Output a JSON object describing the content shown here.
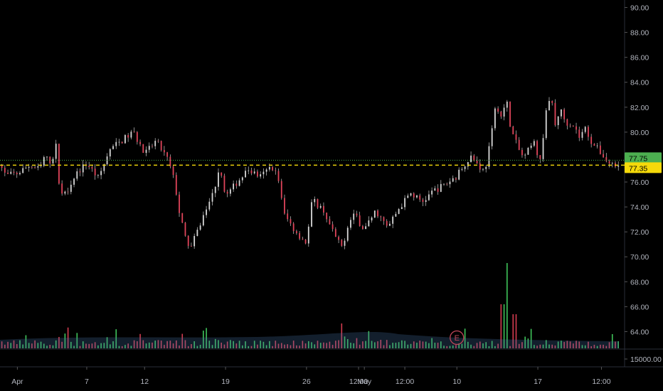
{
  "chart_data": {
    "type": "candlestick",
    "price_axis": {
      "ticks": [
        "90.00",
        "88.00",
        "86.00",
        "84.00",
        "82.00",
        "80.00",
        "78.00",
        "76.00",
        "74.00",
        "72.00",
        "70.00",
        "68.00",
        "66.00",
        "64.00"
      ],
      "ylim": [
        62.6,
        90.6
      ]
    },
    "volume_axis": {
      "label": "15000.00"
    },
    "time_axis": {
      "ticks": [
        "Apr",
        "7",
        "12",
        "19",
        "26",
        "12:00",
        "May",
        "12:00",
        "10",
        "17",
        "12:00"
      ],
      "tick_days": [
        0,
        6,
        11,
        18,
        25,
        29.5,
        30,
        33.5,
        38,
        45,
        50.5
      ],
      "xlim": [
        -1.5,
        52.5
      ]
    },
    "price_tags": [
      {
        "label": "77.75",
        "value": 77.75,
        "color": "#4caf50"
      },
      {
        "label": "77.35",
        "value": 77.35,
        "color": "#f5d90a"
      }
    ],
    "reference_line": {
      "value": 77.35,
      "color": "#f5d90a",
      "style": "dashed"
    },
    "earnings_marker": {
      "label": "E",
      "day": 38
    },
    "path": [
      [
        -1.6,
        77.6
      ],
      [
        -1.0,
        76.5
      ],
      [
        0,
        76.7
      ],
      [
        1.0,
        77.3
      ],
      [
        2.0,
        77.0
      ],
      [
        2.2,
        78.0
      ],
      [
        3.0,
        77.6
      ],
      [
        3.3,
        79.3
      ],
      [
        3.6,
        76.0
      ],
      [
        4.0,
        74.8
      ],
      [
        5.0,
        76.6
      ],
      [
        6.0,
        77.5
      ],
      [
        7.0,
        76.3
      ],
      [
        8.0,
        78.6
      ],
      [
        9.0,
        79.3
      ],
      [
        10.0,
        80.0
      ],
      [
        10.5,
        79.2
      ],
      [
        11.0,
        78.2
      ],
      [
        12.0,
        79.3
      ],
      [
        13.0,
        77.8
      ],
      [
        13.6,
        76.0
      ],
      [
        14.0,
        73.6
      ],
      [
        14.5,
        71.5
      ],
      [
        15.0,
        70.7
      ],
      [
        16.0,
        73.1
      ],
      [
        17.0,
        75.3
      ],
      [
        17.5,
        77.4
      ],
      [
        18.0,
        74.8
      ],
      [
        19.0,
        76.0
      ],
      [
        20.0,
        77.0
      ],
      [
        21.0,
        76.4
      ],
      [
        22.0,
        77.3
      ],
      [
        22.6,
        76.2
      ],
      [
        23.0,
        73.5
      ],
      [
        24.0,
        72.1
      ],
      [
        25.0,
        71.1
      ],
      [
        25.5,
        74.6
      ],
      [
        26.5,
        73.7
      ],
      [
        27.0,
        72.5
      ],
      [
        28.0,
        70.7
      ],
      [
        29.0,
        73.5
      ],
      [
        30.0,
        72.2
      ],
      [
        31.0,
        73.7
      ],
      [
        32.0,
        72.3
      ],
      [
        33.0,
        73.9
      ],
      [
        34.0,
        75.1
      ],
      [
        35.0,
        74.4
      ],
      [
        36.0,
        75.3
      ],
      [
        37.0,
        75.8
      ],
      [
        38.0,
        76.5
      ],
      [
        38.6,
        77.4
      ],
      [
        39.2,
        78.1
      ],
      [
        40.0,
        77.2
      ],
      [
        40.4,
        76.8
      ],
      [
        41.0,
        79.8
      ],
      [
        41.4,
        82.4
      ],
      [
        41.8,
        81.2
      ],
      [
        42.3,
        82.5
      ],
      [
        42.7,
        80.1
      ],
      [
        43.0,
        79.4
      ],
      [
        43.4,
        78.5
      ],
      [
        43.8,
        77.9
      ],
      [
        44.3,
        78.7
      ],
      [
        44.7,
        79.1
      ],
      [
        45.2,
        77.6
      ],
      [
        45.7,
        81.8
      ],
      [
        46.2,
        82.6
      ],
      [
        46.5,
        80.5
      ],
      [
        46.9,
        81.9
      ],
      [
        47.4,
        80.8
      ],
      [
        48.0,
        80.7
      ],
      [
        48.6,
        79.6
      ],
      [
        49.1,
        80.3
      ],
      [
        49.6,
        79.3
      ],
      [
        50.1,
        78.7
      ],
      [
        50.6,
        78.2
      ],
      [
        51.0,
        77.6
      ],
      [
        51.5,
        77.4
      ],
      [
        52.0,
        77.6
      ]
    ]
  }
}
